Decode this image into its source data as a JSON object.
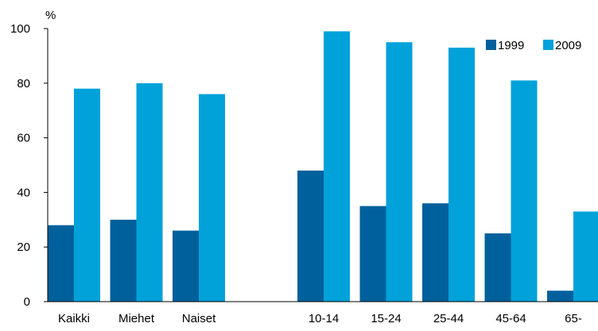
{
  "chart_data": {
    "type": "bar",
    "title": "",
    "xlabel": "",
    "ylabel": "%",
    "ylim": [
      0,
      100
    ],
    "yticks": [
      0,
      20,
      40,
      60,
      80,
      100
    ],
    "grid": false,
    "legend_position": "top-right",
    "categories": [
      "Kaikki",
      "Miehet",
      "Naiset",
      "",
      "10-14",
      "15-24",
      "25-44",
      "45-64",
      "65-"
    ],
    "series": [
      {
        "name": "1999",
        "color": "#00609c",
        "values": [
          28,
          30,
          26,
          null,
          48,
          35,
          36,
          25,
          4
        ]
      },
      {
        "name": "2009",
        "color": "#00a2d9",
        "values": [
          78,
          80,
          76,
          null,
          99,
          95,
          93,
          81,
          33
        ]
      }
    ]
  }
}
